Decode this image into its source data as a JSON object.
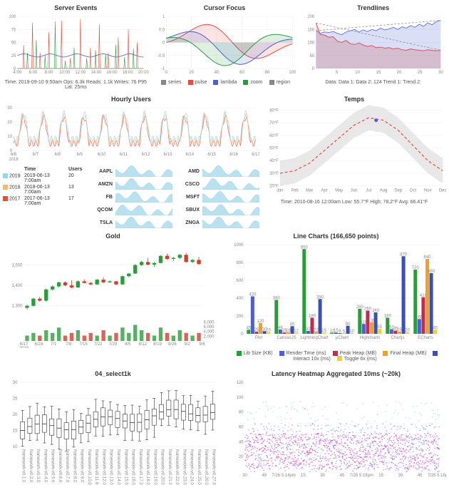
{
  "row1": {
    "server_events": {
      "title": "Server Events",
      "type": "line-spiky",
      "xticks": [
        "4:00",
        "6:00",
        "8:00",
        "10:00",
        "12:00",
        "14:00",
        "16:00",
        "18:00",
        "20:00"
      ],
      "ylim": [
        0,
        100
      ],
      "yticks": [
        0,
        25,
        50,
        75,
        100
      ],
      "series": [
        {
          "color": "#e84c3d",
          "spikes": [
            [
              5,
              45
            ],
            [
              12,
              88
            ],
            [
              18,
              30
            ],
            [
              25,
              70
            ],
            [
              35,
              92
            ],
            [
              42,
              20
            ],
            [
              50,
              95
            ],
            [
              58,
              40
            ],
            [
              65,
              85
            ],
            [
              72,
              30
            ],
            [
              80,
              60
            ],
            [
              88,
              75
            ],
            [
              95,
              50
            ]
          ]
        },
        {
          "color": "#2a9d3a",
          "spikes": [
            [
              8,
              30
            ],
            [
              15,
              55
            ],
            [
              22,
              25
            ],
            [
              30,
              90
            ],
            [
              38,
              15
            ],
            [
              45,
              40
            ],
            [
              55,
              20
            ],
            [
              62,
              35
            ],
            [
              70,
              28
            ],
            [
              78,
              45
            ],
            [
              85,
              22
            ],
            [
              92,
              38
            ]
          ]
        },
        {
          "color": "#4a5fd8",
          "baseline": 25,
          "wave_amp": 3
        }
      ],
      "legend": "Time: 2019-09-10 9:50am  Ops: 6.3k  Reads: 1.1k  Writes: 76  P95 Lat: 25ms",
      "legend_colors": [
        "#e84c3d",
        "#2a9d3a",
        "#4a5fd8",
        "#f4a020"
      ]
    },
    "cursor_focus": {
      "title": "Cursor Focus",
      "type": "sine-overlap",
      "xlim": [
        0,
        100
      ],
      "ylim": [
        -1,
        1
      ],
      "xticks": [
        0,
        20,
        40,
        60,
        80,
        100
      ],
      "series": [
        {
          "color": "#e84c3d",
          "phase": 0,
          "fill_opacity": 0.15
        },
        {
          "color": "#4a5fd8",
          "phase": 1.0,
          "fill_opacity": 0.15
        },
        {
          "color": "#2a9d3a",
          "phase": 2.0,
          "fill_opacity": 0.15
        }
      ],
      "legend_items": [
        "series",
        "pulse",
        "lambda",
        "zoom",
        "region"
      ],
      "legend_colors": [
        "#888",
        "#e84c3d",
        "#4a5fd8",
        "#2a9d3a",
        "#888"
      ]
    },
    "trendlines": {
      "title": "Trendlines",
      "type": "line-fill",
      "xlim": [
        0,
        30
      ],
      "ylim": [
        0,
        200
      ],
      "xticks": [
        5,
        10,
        15,
        20,
        25,
        30
      ],
      "yticks": [
        0,
        50,
        100,
        150,
        200
      ],
      "series": [
        {
          "color": "#e84c3d",
          "fill_opacity": 0.25,
          "values": [
            175,
            130,
            128,
            120,
            122,
            105,
            100,
            108,
            95,
            92,
            98,
            90,
            85,
            88,
            80,
            82,
            78,
            80,
            75,
            78,
            72,
            70,
            75,
            72,
            70,
            68,
            72,
            70,
            68,
            70
          ]
        },
        {
          "color": "#6b7fd8",
          "fill_opacity": 0.25,
          "values": [
            145,
            135,
            140,
            138,
            142,
            135,
            130,
            140,
            145,
            150,
            140,
            148,
            142,
            150,
            145,
            155,
            148,
            152,
            158,
            150,
            160,
            155,
            165,
            158,
            170,
            162,
            175,
            168,
            180,
            185
          ]
        }
      ],
      "trend_dash": "#888",
      "legend": "Data:  Data 1:  Data 2: 124  Trend 1:  Trend 2:"
    }
  },
  "hourly": {
    "title": "Hourly Users",
    "type": "line-multi",
    "xticks": [
      "6/6\\n2018",
      "6/7",
      "6/8",
      "6/9",
      "6/10",
      "6/11",
      "6/12",
      "6/13",
      "6/14",
      "6/15",
      "6/16",
      "6/17"
    ],
    "ylim": [
      0,
      30
    ],
    "colors": {
      "2019": "#9bd4e8",
      "2018": "#f5b870",
      "2017": "#e84c3d"
    },
    "legend_rows": [
      {
        "year": "2019",
        "color": "#9bd4e8",
        "time": "2019-06-13 7:00am",
        "users": "20"
      },
      {
        "year": "2018",
        "color": "#f5b870",
        "time": "2018-06-13 7:00am",
        "users": "13"
      },
      {
        "year": "2017",
        "color": "#e84c3d",
        "time": "2017-06-13 7:00am",
        "users": "17"
      }
    ],
    "legend_headers": [
      "",
      "Time",
      "Users"
    ],
    "sparklines": {
      "color": "#9bd4e8",
      "tickers": [
        "AAPL",
        "AMD",
        "AMZN",
        "CSCO",
        "FB",
        "MSFT",
        "QCOM",
        "SBUX",
        "TSLA",
        "ZNGA"
      ]
    }
  },
  "temps": {
    "title": "Temps",
    "type": "line-band",
    "xticks": [
      "Jan",
      "Feb",
      "Mar",
      "Apr",
      "May",
      "Jun",
      "Jul",
      "Aug",
      "Sep",
      "Oct",
      "Nov",
      "Dec"
    ],
    "ylim": [
      20,
      80
    ],
    "yticks": [
      "20°F",
      "30°F",
      "40°F",
      "50°F",
      "60°F",
      "70°F",
      "80°F"
    ],
    "band_color": "#d8d8d8",
    "line_color": "#e84c3d",
    "line_dash": "4,3",
    "values": [
      30,
      32,
      38,
      48,
      58,
      68,
      74,
      72,
      64,
      52,
      40,
      32
    ],
    "band_width": 10,
    "marker": {
      "x": 6.5,
      "color": "#4a5fd8"
    },
    "legend": "Time: 2010-08-16 12:00am    Low: 55.7°F    High: 78.2°F    Avg: 66.41°F",
    "legend_colors": [
      "#888",
      "#888",
      "#888",
      "#e84c3d"
    ]
  },
  "gold": {
    "title": "Gold",
    "type": "candlestick",
    "xlim": [
      "6/17\\n2019",
      "9/6"
    ],
    "xticks": [
      "6/17\\n2019",
      "6/24",
      "7/1",
      "7/8",
      "7/15",
      "7/22",
      "7/29",
      "8/5",
      "8/12",
      "8/19",
      "8/26",
      "9/2",
      "9/6"
    ],
    "ylim_left": [
      1250,
      1600
    ],
    "yticks_left": [
      1300,
      1400,
      1500
    ],
    "ylim_right": [
      0,
      9000
    ],
    "yticks_right": [
      2000,
      4000,
      6000,
      8000
    ],
    "up_color": "#2a9d3a",
    "down_color": "#d83a2a",
    "candles": [
      [
        1290,
        1305,
        1280,
        1300,
        1
      ],
      [
        1300,
        1340,
        1295,
        1335,
        1
      ],
      [
        1335,
        1345,
        1320,
        1325,
        -1
      ],
      [
        1325,
        1385,
        1320,
        1380,
        1
      ],
      [
        1380,
        1400,
        1375,
        1395,
        1
      ],
      [
        1395,
        1418,
        1390,
        1415,
        1
      ],
      [
        1415,
        1420,
        1395,
        1400,
        -1
      ],
      [
        1400,
        1425,
        1385,
        1390,
        -1
      ],
      [
        1390,
        1425,
        1388,
        1420,
        1
      ],
      [
        1420,
        1430,
        1410,
        1412,
        -1
      ],
      [
        1412,
        1418,
        1400,
        1405,
        -1
      ],
      [
        1405,
        1432,
        1402,
        1428,
        1
      ],
      [
        1428,
        1440,
        1410,
        1415,
        -1
      ],
      [
        1415,
        1425,
        1412,
        1420,
        1
      ],
      [
        1420,
        1422,
        1400,
        1405,
        -1
      ],
      [
        1405,
        1450,
        1402,
        1445,
        1
      ],
      [
        1445,
        1462,
        1440,
        1458,
        1
      ],
      [
        1458,
        1505,
        1455,
        1500,
        1
      ],
      [
        1500,
        1520,
        1495,
        1515,
        1
      ],
      [
        1515,
        1535,
        1498,
        1502,
        -1
      ],
      [
        1502,
        1515,
        1490,
        1510,
        1
      ],
      [
        1510,
        1548,
        1508,
        1545,
        1
      ],
      [
        1545,
        1555,
        1525,
        1530,
        -1
      ],
      [
        1530,
        1540,
        1520,
        1535,
        1
      ],
      [
        1535,
        1555,
        1530,
        1550,
        1
      ],
      [
        1550,
        1560,
        1510,
        1515,
        -1
      ],
      [
        1515,
        1530,
        1510,
        1525,
        1
      ],
      [
        1525,
        1540,
        1500,
        1505,
        -1
      ]
    ],
    "volumes": [
      2,
      3,
      2,
      4,
      3,
      5,
      2,
      3,
      4,
      2,
      3,
      2,
      4,
      2,
      3,
      5,
      3,
      6,
      4,
      3,
      2,
      5,
      3,
      2,
      4,
      3,
      2,
      3
    ]
  },
  "line_charts_bars": {
    "title": "Line Charts (166,650 points)",
    "type": "grouped-bar",
    "categories": [
      "Plot",
      "CanvasJS",
      "LightningChart",
      "μChart",
      "Highcharts",
      "Chartjs",
      "ECharts"
    ],
    "metrics": [
      {
        "name": "Lib Size (KB)",
        "color": "#2a9d3a"
      },
      {
        "name": "Render Time (ms)",
        "color": "#4a5fd8"
      },
      {
        "name": "Peak Heap (MB)",
        "color": "#c42a4a"
      },
      {
        "name": "Final Heap (MB)",
        "color": "#f5a020"
      },
      {
        "name": "Interact 10x (ms)",
        "color": "#3a4fb8"
      },
      {
        "name": "Toggle 6x (ms)",
        "color": "#f5d020"
      }
    ],
    "data": [
      [
        45,
        420,
        25,
        120,
        30,
        20
      ],
      [
        380,
        48,
        15,
        18,
        85,
        12
      ],
      [
        950,
        32,
        180,
        22,
        390,
        15
      ],
      [
        12,
        15,
        8,
        5,
        90,
        10
      ],
      [
        280,
        110,
        260,
        130,
        240,
        55
      ],
      [
        180,
        52,
        35,
        25,
        870,
        20
      ],
      [
        720,
        165,
        410,
        840,
        680,
        45
      ]
    ],
    "ylim": [
      0,
      1000
    ],
    "yticks": [
      0,
      200,
      400,
      600,
      800,
      1000
    ],
    "value_labels_fontsize": 5
  },
  "select1k": {
    "title": "04_select1k",
    "type": "boxplot",
    "ylim": [
      10,
      30
    ],
    "yticks": [
      10,
      15,
      20,
      25,
      30
    ],
    "n_boxes": 27,
    "box_color": "#fff",
    "border_color": "#333",
    "whisker_color": "#333",
    "base": 15,
    "spread": 4,
    "trend": 0.25,
    "xlabels_rotation": 90,
    "xlabel_fontsize": 5
  },
  "heatmap": {
    "title": "Latency Heatmap Aggregated 10ms (~20k)",
    "type": "scatter-heatmap",
    "xticks": [
      "30",
      "45",
      "7/26 5:14pm",
      "15",
      "30",
      "45",
      "7/26 5:15pm",
      "15",
      "30",
      "45",
      "7/26 5:16pm"
    ],
    "ylim": [
      0,
      120
    ],
    "yticks": [
      20,
      40,
      60,
      80,
      100,
      120
    ],
    "colors": {
      "sparse": "#3ab8e0",
      "mid": "#4a5fd8",
      "dense": "#d838c8"
    },
    "density_bands": [
      {
        "y_center": 40,
        "y_spread": 12,
        "color": "#d838c8",
        "alpha": 0.9
      },
      {
        "y_center": 40,
        "y_spread": 25,
        "color": "#4a5fd8",
        "alpha": 0.7
      },
      {
        "y_center": 50,
        "y_spread": 45,
        "color": "#3ab8e0",
        "alpha": 0.5
      }
    ]
  }
}
